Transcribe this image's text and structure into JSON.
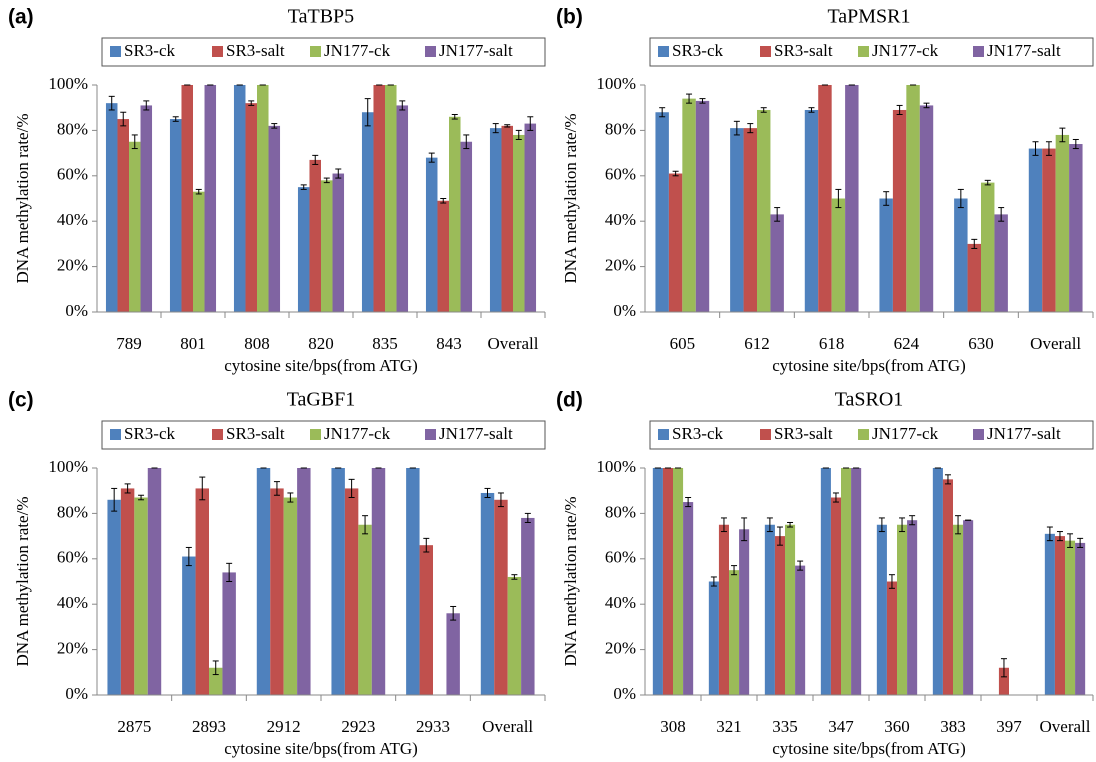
{
  "chart_data": [
    {
      "type": "bar",
      "panel": "(a)",
      "title": "TaTBP5",
      "ylabel": "DNA methylation rate/%",
      "xlabel": "cytosine site/bps(from ATG)",
      "categories": [
        "789",
        "801",
        "808",
        "820",
        "835",
        "843",
        "Overall"
      ],
      "series": [
        {
          "name": "SR3-ck",
          "color": "#4f81bd",
          "values": [
            92,
            85,
            100,
            55,
            88,
            68,
            81
          ],
          "errors": [
            3,
            1,
            0,
            1,
            6,
            2,
            2
          ]
        },
        {
          "name": "SR3-salt",
          "color": "#c0504d",
          "values": [
            85,
            100,
            92,
            67,
            100,
            49,
            82
          ],
          "errors": [
            3,
            0,
            1,
            2,
            0,
            1,
            0.5
          ]
        },
        {
          "name": "JN177-ck",
          "color": "#9bbb59",
          "values": [
            75,
            53,
            100,
            58,
            100,
            86,
            78
          ],
          "errors": [
            3,
            1,
            0,
            1,
            0,
            1,
            2
          ]
        },
        {
          "name": "JN177-salt",
          "color": "#8064a2",
          "values": [
            91,
            100,
            82,
            61,
            91,
            75,
            83
          ],
          "errors": [
            2,
            0,
            1,
            2,
            2,
            3,
            3
          ]
        }
      ],
      "ylim": [
        0,
        100
      ],
      "yticks": [
        {
          "value": 0,
          "label": "0%"
        },
        {
          "value": 20,
          "label": "20%"
        },
        {
          "value": 40,
          "label": "40%"
        },
        {
          "value": 60,
          "label": "60%"
        },
        {
          "value": 80,
          "label": "80%"
        },
        {
          "value": 100,
          "label": "100%"
        }
      ],
      "legend": "top"
    },
    {
      "type": "bar",
      "panel": "(b)",
      "title": "TaPMSR1",
      "ylabel": "DNA methylation rate/%",
      "xlabel": "cytosine site/bps(from ATG)",
      "categories": [
        "605",
        "612",
        "618",
        "624",
        "630",
        "Overall"
      ],
      "series": [
        {
          "name": "SR3-ck",
          "color": "#4f81bd",
          "values": [
            88,
            81,
            89,
            50,
            50,
            72
          ],
          "errors": [
            2,
            3,
            1,
            3,
            4,
            3
          ]
        },
        {
          "name": "SR3-salt",
          "color": "#c0504d",
          "values": [
            61,
            81,
            100,
            89,
            30,
            72
          ],
          "errors": [
            1,
            2,
            0,
            2,
            2,
            3
          ]
        },
        {
          "name": "JN177-ck",
          "color": "#9bbb59",
          "values": [
            94,
            89,
            50,
            100,
            57,
            78
          ],
          "errors": [
            2,
            1,
            4,
            0,
            1,
            3
          ]
        },
        {
          "name": "JN177-salt",
          "color": "#8064a2",
          "values": [
            93,
            43,
            100,
            91,
            43,
            74
          ],
          "errors": [
            1,
            3,
            0,
            1,
            3,
            2
          ]
        }
      ],
      "ylim": [
        0,
        100
      ],
      "yticks": [
        {
          "value": 0,
          "label": "0%"
        },
        {
          "value": 20,
          "label": "20%"
        },
        {
          "value": 40,
          "label": "40%"
        },
        {
          "value": 60,
          "label": "60%"
        },
        {
          "value": 80,
          "label": "80%"
        },
        {
          "value": 100,
          "label": "100%"
        }
      ],
      "legend": "top"
    },
    {
      "type": "bar",
      "panel": "(c)",
      "title": "TaGBF1",
      "ylabel": "DNA methylation rate/%",
      "xlabel": "cytosine site/bps(from ATG)",
      "categories": [
        "2875",
        "2893",
        "2912",
        "2923",
        "2933",
        "Overall"
      ],
      "series": [
        {
          "name": "SR3-ck",
          "color": "#4f81bd",
          "values": [
            86,
            61,
            100,
            100,
            100,
            89
          ],
          "errors": [
            5,
            4,
            0,
            0,
            0,
            2
          ]
        },
        {
          "name": "SR3-salt",
          "color": "#c0504d",
          "values": [
            91,
            91,
            91,
            91,
            66,
            86
          ],
          "errors": [
            2,
            5,
            3,
            4,
            3,
            3
          ]
        },
        {
          "name": "JN177-ck",
          "color": "#9bbb59",
          "values": [
            87,
            12,
            87,
            75,
            0,
            52
          ],
          "errors": [
            1,
            3,
            2,
            4,
            0,
            1
          ]
        },
        {
          "name": "JN177-salt",
          "color": "#8064a2",
          "values": [
            100,
            54,
            100,
            100,
            36,
            78
          ],
          "errors": [
            0,
            4,
            0,
            0,
            3,
            2
          ]
        }
      ],
      "ylim": [
        0,
        100
      ],
      "yticks": [
        {
          "value": 0,
          "label": "0%"
        },
        {
          "value": 20,
          "label": "20%"
        },
        {
          "value": 40,
          "label": "40%"
        },
        {
          "value": 60,
          "label": "60%"
        },
        {
          "value": 80,
          "label": "80%"
        },
        {
          "value": 100,
          "label": "100%"
        }
      ],
      "legend": "top"
    },
    {
      "type": "bar",
      "panel": "(d)",
      "title": "TaSRO1",
      "ylabel": "DNA methylation rate/%",
      "xlabel": "cytosine site/bps(from ATG)",
      "categories": [
        "308",
        "321",
        "335",
        "347",
        "360",
        "383",
        "397",
        "Overall"
      ],
      "series": [
        {
          "name": "SR3-ck",
          "color": "#4f81bd",
          "values": [
            100,
            50,
            75,
            100,
            75,
            100,
            0,
            71
          ],
          "errors": [
            0,
            2,
            3,
            0,
            3,
            0,
            0,
            3
          ]
        },
        {
          "name": "SR3-salt",
          "color": "#c0504d",
          "values": [
            100,
            75,
            70,
            87,
            50,
            95,
            12,
            70
          ],
          "errors": [
            0,
            3,
            4,
            2,
            3,
            2,
            4,
            2
          ]
        },
        {
          "name": "JN177-ck",
          "color": "#9bbb59",
          "values": [
            100,
            55,
            75,
            100,
            75,
            75,
            0,
            68
          ],
          "errors": [
            0,
            2,
            1,
            0,
            3,
            4,
            0,
            3
          ]
        },
        {
          "name": "JN177-salt",
          "color": "#8064a2",
          "values": [
            85,
            73,
            57,
            100,
            77,
            77,
            0,
            67
          ],
          "errors": [
            2,
            5,
            2,
            0,
            2,
            0,
            0,
            2
          ]
        }
      ],
      "ylim": [
        0,
        100
      ],
      "yticks": [
        {
          "value": 0,
          "label": "0%"
        },
        {
          "value": 20,
          "label": "20%"
        },
        {
          "value": 40,
          "label": "40%"
        },
        {
          "value": 60,
          "label": "60%"
        },
        {
          "value": 80,
          "label": "80%"
        },
        {
          "value": 100,
          "label": "100%"
        }
      ],
      "legend": "top"
    }
  ]
}
